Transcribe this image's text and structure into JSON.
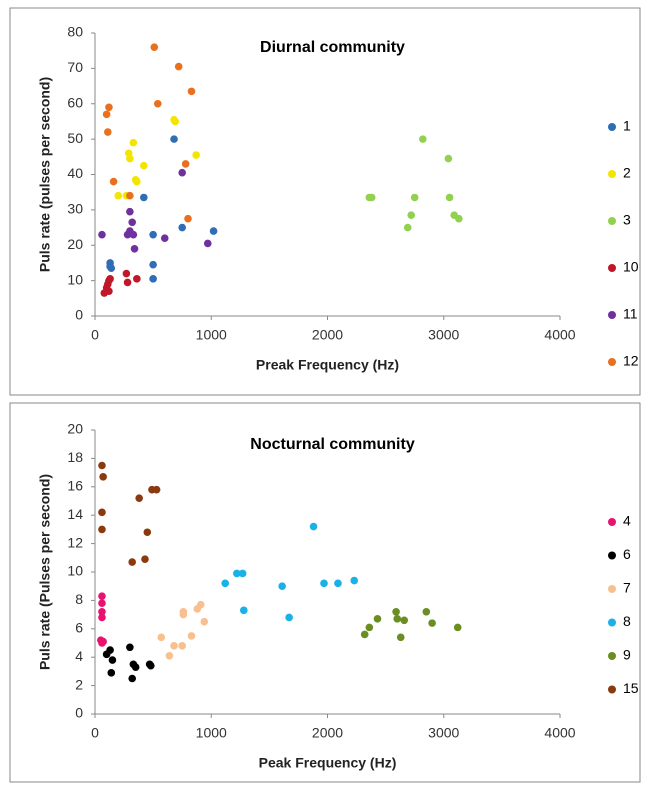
{
  "chart_data": [
    {
      "type": "scatter",
      "title": "Diurnal  community",
      "x_label": "Preak Frequency (Hz)",
      "y_label": "Puls rate (pulses per second)",
      "xlim": [
        0,
        4000
      ],
      "xticks": [
        0,
        1000,
        2000,
        3000,
        4000
      ],
      "ylim": [
        0,
        80
      ],
      "yticks": [
        0,
        10,
        20,
        30,
        40,
        50,
        60,
        70,
        80
      ],
      "grid": false,
      "legend": "right",
      "series": [
        {
          "name": "1",
          "color": "#2f6db5",
          "x": [
            680,
            420,
            130,
            130,
            140,
            500,
            500,
            500,
            750,
            1020
          ],
          "values": [
            50,
            33.5,
            15,
            14,
            13.5,
            23,
            14.5,
            10.5,
            25,
            24
          ]
        },
        {
          "name": "2",
          "color": "#f2e600",
          "x": [
            330,
            290,
            300,
            350,
            360,
            270,
            420,
            680,
            690,
            870,
            200
          ],
          "values": [
            49,
            46,
            44.5,
            38.5,
            38,
            34,
            42.5,
            55.5,
            55,
            45.5,
            34
          ]
        },
        {
          "name": "3",
          "color": "#92d050",
          "x": [
            2820,
            3040,
            2360,
            2380,
            2750,
            3050,
            2720,
            2690,
            3090,
            3130
          ],
          "values": [
            50,
            44.5,
            33.5,
            33.5,
            33.5,
            33.5,
            28.5,
            25,
            28.5,
            27.5
          ]
        },
        {
          "name": "10",
          "color": "#c0182a",
          "x": [
            80,
            100,
            110,
            120,
            130,
            270,
            280,
            360,
            120
          ],
          "values": [
            6.5,
            8,
            9,
            10,
            10.5,
            12,
            9.5,
            10.5,
            7
          ]
        },
        {
          "name": "11",
          "color": "#7030a0",
          "x": [
            60,
            300,
            320,
            300,
            280,
            330,
            340,
            600,
            750,
            970
          ],
          "values": [
            23,
            29.5,
            26.5,
            24,
            23,
            23,
            19,
            22,
            40.5,
            20.5
          ]
        },
        {
          "name": "12",
          "color": "#e8701e",
          "x": [
            510,
            720,
            830,
            540,
            120,
            100,
            110,
            160,
            780,
            300,
            800
          ],
          "values": [
            76,
            70.5,
            63.5,
            60,
            59,
            57,
            52,
            38,
            43,
            34,
            27.5
          ]
        }
      ]
    },
    {
      "type": "scatter",
      "title": "Nocturnal community",
      "x_label": "Peak Frequency (Hz)",
      "y_label": "Puls rate (Pulses per second)",
      "xlim": [
        0,
        4000
      ],
      "xticks": [
        0,
        1000,
        2000,
        3000,
        4000
      ],
      "ylim": [
        0,
        20
      ],
      "yticks": [
        0,
        2,
        4,
        6,
        8,
        10,
        12,
        14,
        16,
        18,
        20
      ],
      "grid": false,
      "legend": "right",
      "series": [
        {
          "name": "4",
          "color": "#e8126f",
          "x": [
            60,
            60,
            60,
            60,
            50,
            60,
            70
          ],
          "values": [
            8.3,
            7.8,
            7.2,
            6.8,
            5.2,
            5,
            5.1
          ]
        },
        {
          "name": "6",
          "color": "#000000",
          "x": [
            100,
            130,
            150,
            140,
            300,
            330,
            350,
            320,
            470,
            480
          ],
          "values": [
            4.2,
            4.5,
            3.8,
            2.9,
            4.7,
            3.5,
            3.3,
            2.5,
            3.5,
            3.4
          ]
        },
        {
          "name": "7",
          "color": "#f9c08f",
          "x": [
            570,
            640,
            680,
            750,
            760,
            760,
            830,
            880,
            910,
            940
          ],
          "values": [
            5.4,
            4.1,
            4.8,
            4.8,
            7,
            7.2,
            5.5,
            7.4,
            7.7,
            6.5
          ]
        },
        {
          "name": "8",
          "color": "#1ab0e8",
          "x": [
            1120,
            1220,
            1270,
            1280,
            1610,
            1670,
            1880,
            1970,
            2090,
            2230
          ],
          "values": [
            9.2,
            9.9,
            9.9,
            7.3,
            9,
            6.8,
            13.2,
            9.2,
            9.2,
            9.4
          ]
        },
        {
          "name": "9",
          "color": "#6b8e23",
          "x": [
            2320,
            2360,
            2430,
            2590,
            2600,
            2630,
            2660,
            2850,
            2900,
            3120
          ],
          "values": [
            5.6,
            6.1,
            6.7,
            7.2,
            6.7,
            5.4,
            6.6,
            7.2,
            6.4,
            6.1
          ]
        },
        {
          "name": "15",
          "color": "#8b3a0f",
          "x": [
            60,
            70,
            60,
            60,
            380,
            490,
            530,
            450,
            320,
            430
          ],
          "values": [
            17.5,
            16.7,
            14.2,
            13,
            15.2,
            15.8,
            15.8,
            12.8,
            10.7,
            10.9
          ]
        }
      ]
    }
  ]
}
